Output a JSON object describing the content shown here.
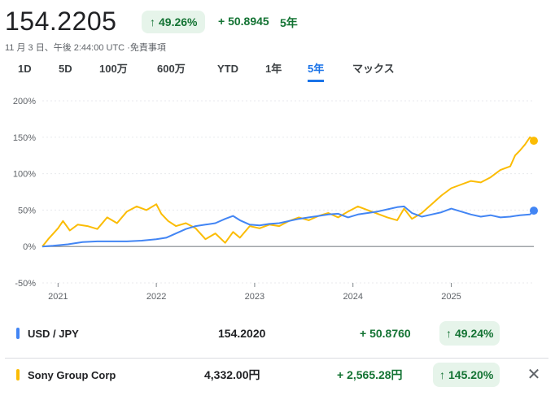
{
  "header": {
    "price": "154.2205",
    "pct_arrow": "↑",
    "pct_change": "49.26%",
    "abs_change": "+ 50.8945",
    "period": "5年"
  },
  "timestamp": "11 月 3 日、午後 2:44:00 UTC ·免責事項",
  "tabs": [
    {
      "label": "1D",
      "active": false
    },
    {
      "label": "5D",
      "active": false
    },
    {
      "label": "100万",
      "active": false
    },
    {
      "label": "600万",
      "active": false
    },
    {
      "label": "YTD",
      "active": false
    },
    {
      "label": "1年",
      "active": false
    },
    {
      "label": "5年",
      "active": true
    },
    {
      "label": "マックス",
      "active": false
    }
  ],
  "chart_data": {
    "type": "line",
    "y_ticks": [
      "200%",
      "150%",
      "100%",
      "50%",
      "0%",
      "-50%"
    ],
    "y_tick_values": [
      200,
      150,
      100,
      50,
      0,
      -50
    ],
    "ylim": [
      -50,
      200
    ],
    "x_tick_labels": [
      "2021",
      "2022",
      "2023",
      "2024",
      "2025"
    ],
    "x_tick_years": [
      2021,
      2022,
      2023,
      2024,
      2025
    ],
    "xlim": [
      2020.84,
      2025.84
    ],
    "series": [
      {
        "name": "USD / JPY",
        "color": "#4285f4",
        "x": [
          2020.84,
          2020.95,
          2021.1,
          2021.25,
          2021.4,
          2021.55,
          2021.7,
          2021.85,
          2022.0,
          2022.1,
          2022.2,
          2022.3,
          2022.4,
          2022.5,
          2022.6,
          2022.7,
          2022.78,
          2022.85,
          2022.95,
          2023.05,
          2023.15,
          2023.25,
          2023.35,
          2023.45,
          2023.55,
          2023.65,
          2023.75,
          2023.85,
          2023.95,
          2024.05,
          2024.15,
          2024.25,
          2024.35,
          2024.45,
          2024.52,
          2024.6,
          2024.7,
          2024.8,
          2024.9,
          2025.0,
          2025.1,
          2025.2,
          2025.3,
          2025.4,
          2025.5,
          2025.6,
          2025.7,
          2025.8,
          2025.84
        ],
        "y": [
          0,
          1,
          3,
          6,
          7,
          7,
          7,
          8,
          10,
          12,
          18,
          24,
          28,
          30,
          32,
          38,
          42,
          36,
          30,
          29,
          31,
          32,
          35,
          38,
          40,
          42,
          44,
          45,
          40,
          44,
          46,
          48,
          51,
          54,
          55,
          46,
          41,
          44,
          47,
          52,
          48,
          44,
          41,
          43,
          40,
          41,
          43,
          44,
          49.24
        ]
      },
      {
        "name": "Sony Group Corp",
        "color": "#fbbc04",
        "x": [
          2020.84,
          2020.9,
          2021.0,
          2021.05,
          2021.12,
          2021.2,
          2021.3,
          2021.4,
          2021.5,
          2021.6,
          2021.7,
          2021.8,
          2021.9,
          2022.0,
          2022.05,
          2022.12,
          2022.2,
          2022.3,
          2022.4,
          2022.5,
          2022.6,
          2022.7,
          2022.78,
          2022.85,
          2022.95,
          2023.05,
          2023.15,
          2023.25,
          2023.35,
          2023.45,
          2023.55,
          2023.65,
          2023.75,
          2023.85,
          2023.95,
          2024.05,
          2024.15,
          2024.25,
          2024.35,
          2024.45,
          2024.52,
          2024.6,
          2024.7,
          2024.8,
          2024.9,
          2025.0,
          2025.1,
          2025.2,
          2025.3,
          2025.4,
          2025.5,
          2025.6,
          2025.65,
          2025.7,
          2025.75,
          2025.8,
          2025.84
        ],
        "y": [
          0,
          10,
          25,
          35,
          22,
          30,
          28,
          24,
          40,
          32,
          48,
          55,
          50,
          58,
          45,
          35,
          28,
          32,
          25,
          10,
          18,
          5,
          20,
          12,
          28,
          25,
          30,
          28,
          35,
          40,
          36,
          42,
          46,
          40,
          48,
          55,
          50,
          45,
          40,
          36,
          52,
          38,
          46,
          58,
          70,
          80,
          85,
          90,
          88,
          95,
          105,
          110,
          125,
          132,
          140,
          150,
          145.2
        ]
      }
    ]
  },
  "legend": [
    {
      "name": "USD / JPY",
      "color": "#4285f4",
      "value": "154.2020",
      "change": "+ 50.8760",
      "pct_arrow": "↑",
      "pct": "49.24%"
    },
    {
      "name": "Sony Group Corp",
      "color": "#fbbc04",
      "value": "4,332.00円",
      "change": "+ 2,565.28円",
      "pct_arrow": "↑",
      "pct": "145.20%",
      "close": "✕"
    }
  ]
}
